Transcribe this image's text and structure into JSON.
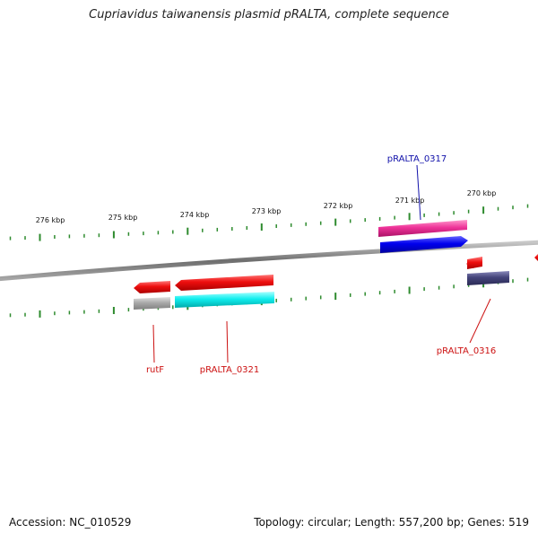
{
  "title": "Cupriavidus taiwanensis plasmid pRALTA, complete sequence",
  "accession": "Accession: NC_010529",
  "summary": "Topology: circular; Length: 557,200 bp; Genes: 519",
  "scale_labels": [
    "276 kbp",
    "275 kbp",
    "274 kbp",
    "273 kbp",
    "272 kbp",
    "271 kbp",
    "270 kbp"
  ],
  "gene_labels": {
    "pralta_0317": "pRALTA_0317",
    "rutf": "rutF",
    "pralta_0321": "pRALTA_0321",
    "pralta_0316": "pRALTA_0316"
  },
  "colors": {
    "tick": "#2e8b2e",
    "backbone": "#8a8a8a",
    "red_feature": "#ee1111",
    "pink_feature": "#ee3399",
    "blue_feature": "#0000ee",
    "cyan_feature": "#11eeee",
    "gray_feature": "#aaaaaa",
    "slate_feature": "#44447a",
    "label_blue": "#1111aa",
    "label_red": "#cc1111"
  }
}
